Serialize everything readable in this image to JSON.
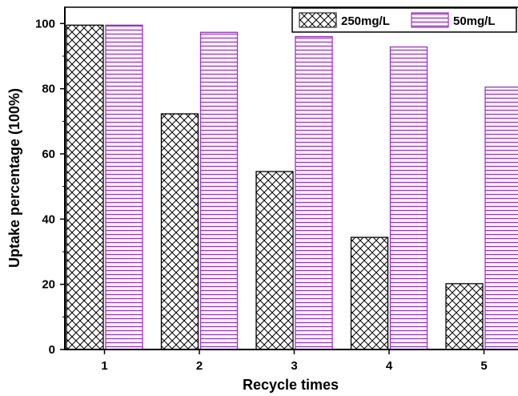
{
  "chart_data": {
    "type": "bar",
    "categories": [
      "1",
      "2",
      "3",
      "4",
      "5"
    ],
    "series": [
      {
        "name": "250mg/L",
        "values": [
          99.5,
          72.3,
          54.6,
          34.4,
          20.2
        ],
        "color": "#000000",
        "pattern": "crosshatch"
      },
      {
        "name": "50mg/L",
        "values": [
          99.5,
          97.3,
          96.0,
          92.8,
          80.5
        ],
        "color": "#9b30c8",
        "pattern": "horizontal-lines"
      }
    ],
    "title": "",
    "xlabel": "Recycle times",
    "ylabel": "Uptake percentage (100%)",
    "ylim": [
      0,
      105
    ],
    "yticks": [
      "0",
      "20",
      "40",
      "60",
      "80",
      "100"
    ],
    "grid": false,
    "legend": "top-right"
  }
}
